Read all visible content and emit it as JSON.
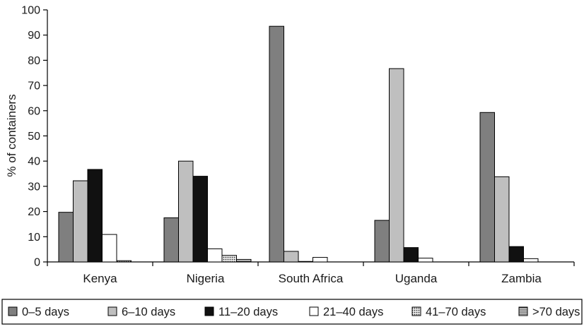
{
  "chart_data": {
    "type": "bar",
    "title": "",
    "xlabel": "",
    "ylabel": "% of containers",
    "ylim": [
      0,
      100
    ],
    "yticks": [
      0,
      10,
      20,
      30,
      40,
      50,
      60,
      70,
      80,
      90,
      100
    ],
    "grid": false,
    "legend_position": "bottom",
    "categories": [
      "Kenya",
      "Nigeria",
      "South Africa",
      "Uganda",
      "Zambia"
    ],
    "series": [
      {
        "name": "0–5 days",
        "values": [
          19.7,
          17.5,
          93.5,
          16.5,
          59.3
        ],
        "color": "#7f7f7f",
        "pattern": "solid"
      },
      {
        "name": "6–10 days",
        "values": [
          32.2,
          40.0,
          4.2,
          76.7,
          33.8
        ],
        "color": "#bfbfbf",
        "pattern": "solid"
      },
      {
        "name": "11–20 days",
        "values": [
          36.7,
          34.0,
          0.2,
          5.7,
          6.1
        ],
        "color": "#111111",
        "pattern": "solid"
      },
      {
        "name": "21–40 days",
        "values": [
          10.9,
          5.2,
          1.8,
          1.5,
          1.3
        ],
        "color": "#ffffff",
        "pattern": "solid"
      },
      {
        "name": "41–70 days",
        "values": [
          0.5,
          2.6,
          0,
          0,
          0
        ],
        "color": "#d0d0d0",
        "pattern": "dots"
      },
      {
        "name": ">70 days",
        "values": [
          0,
          1.0,
          0,
          0,
          0
        ],
        "color": "#bfbfbf",
        "pattern": "hlines"
      }
    ]
  }
}
